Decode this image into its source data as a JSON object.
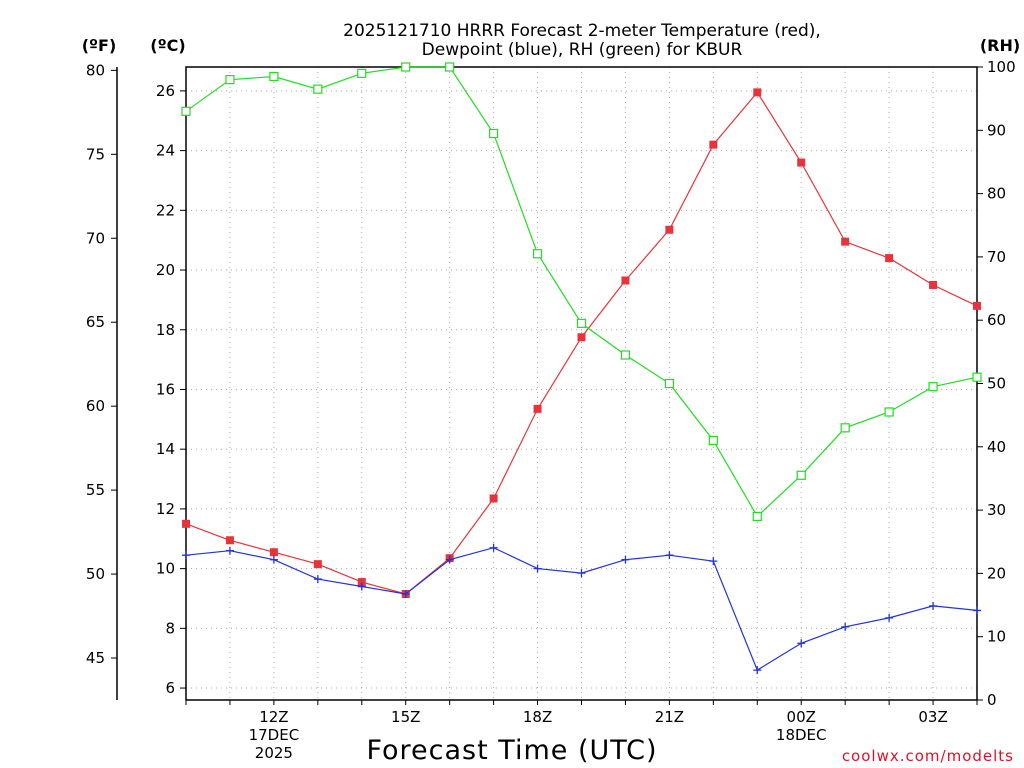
{
  "chart_data": {
    "type": "line",
    "title_lines": [
      "2025121710 HRRR Forecast 2-meter Temperature (red),",
      "Dewpoint (blue), RH (green) for KBUR"
    ],
    "xlabel": "Forecast Time (UTC)",
    "credit": "coolwx.com/modelts",
    "x_hours": [
      10,
      11,
      12,
      13,
      14,
      15,
      16,
      17,
      18,
      19,
      20,
      21,
      22,
      23,
      24,
      25,
      26,
      27,
      28
    ],
    "x_ticks": [
      {
        "hour": 12,
        "lines": [
          "12Z",
          "17DEC",
          "2025"
        ]
      },
      {
        "hour": 15,
        "lines": [
          "15Z"
        ]
      },
      {
        "hour": 18,
        "lines": [
          "18Z"
        ]
      },
      {
        "hour": 21,
        "lines": [
          "21Z"
        ]
      },
      {
        "hour": 24,
        "lines": [
          "00Z",
          "18DEC"
        ]
      },
      {
        "hour": 27,
        "lines": [
          "03Z"
        ]
      }
    ],
    "xlim": [
      10,
      28
    ],
    "left_axis_f": {
      "unit_label": "(ºF)",
      "ticks": [
        "45",
        "50",
        "55",
        "60",
        "65",
        "70",
        "75",
        "80"
      ],
      "range": [
        42.5,
        80.2
      ]
    },
    "left_axis_c": {
      "unit_label": "(ºC)",
      "ticks": [
        "6",
        "8",
        "10",
        "12",
        "14",
        "16",
        "18",
        "20",
        "22",
        "24",
        "26"
      ],
      "ylim": [
        5.6,
        26.8
      ]
    },
    "right_axis_rh": {
      "unit_label": "(RH)",
      "ticks": [
        "0",
        "10",
        "20",
        "30",
        "40",
        "50",
        "60",
        "70",
        "80",
        "90",
        "100"
      ],
      "ylim": [
        0,
        100
      ]
    },
    "series": [
      {
        "name": "Temperature",
        "axis": "c",
        "color": "#e8333a",
        "marker": "filled-square",
        "values": [
          11.5,
          10.95,
          10.55,
          10.15,
          9.55,
          9.15,
          10.35,
          12.35,
          15.35,
          17.75,
          19.65,
          21.35,
          24.2,
          25.95,
          23.6,
          20.95,
          20.4,
          19.5,
          18.8
        ]
      },
      {
        "name": "Dewpoint",
        "axis": "c",
        "color": "#2233dd",
        "marker": "plus",
        "values": [
          10.45,
          10.6,
          10.3,
          9.65,
          9.4,
          9.15,
          10.3,
          10.7,
          10.0,
          9.85,
          10.3,
          10.45,
          10.25,
          6.6,
          7.5,
          8.05,
          8.35,
          8.75,
          8.6
        ]
      },
      {
        "name": "RH",
        "axis": "rh",
        "color": "#22dd22",
        "marker": "open-square",
        "values": [
          93,
          98,
          98.5,
          96.5,
          99,
          100,
          100,
          89.5,
          70.5,
          59.5,
          54.5,
          50,
          41,
          29,
          35.5,
          43,
          45.5,
          49.5,
          51
        ]
      }
    ]
  }
}
